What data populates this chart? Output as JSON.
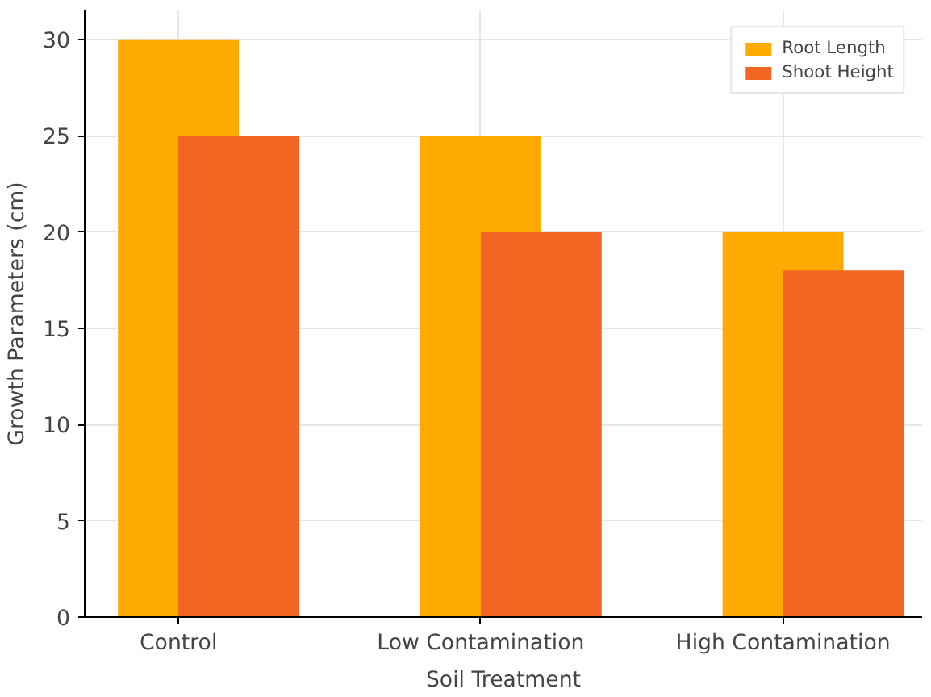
{
  "chart_data": {
    "type": "bar",
    "xlabel": "Soil Treatment",
    "ylabel": "Growth Parameters (cm)",
    "categories": [
      "Control",
      "Low Contamination",
      "High Contamination"
    ],
    "series": [
      {
        "name": "Root Length",
        "color": "#ffaa00",
        "values": [
          30,
          25,
          20
        ]
      },
      {
        "name": "Shoot Height",
        "color": "#f26522",
        "values": [
          25,
          20,
          18
        ]
      }
    ],
    "ylim": [
      0,
      31.5
    ],
    "yticks": [
      0,
      5,
      10,
      15,
      20,
      25,
      30
    ],
    "grid": true,
    "legend": "top right"
  }
}
